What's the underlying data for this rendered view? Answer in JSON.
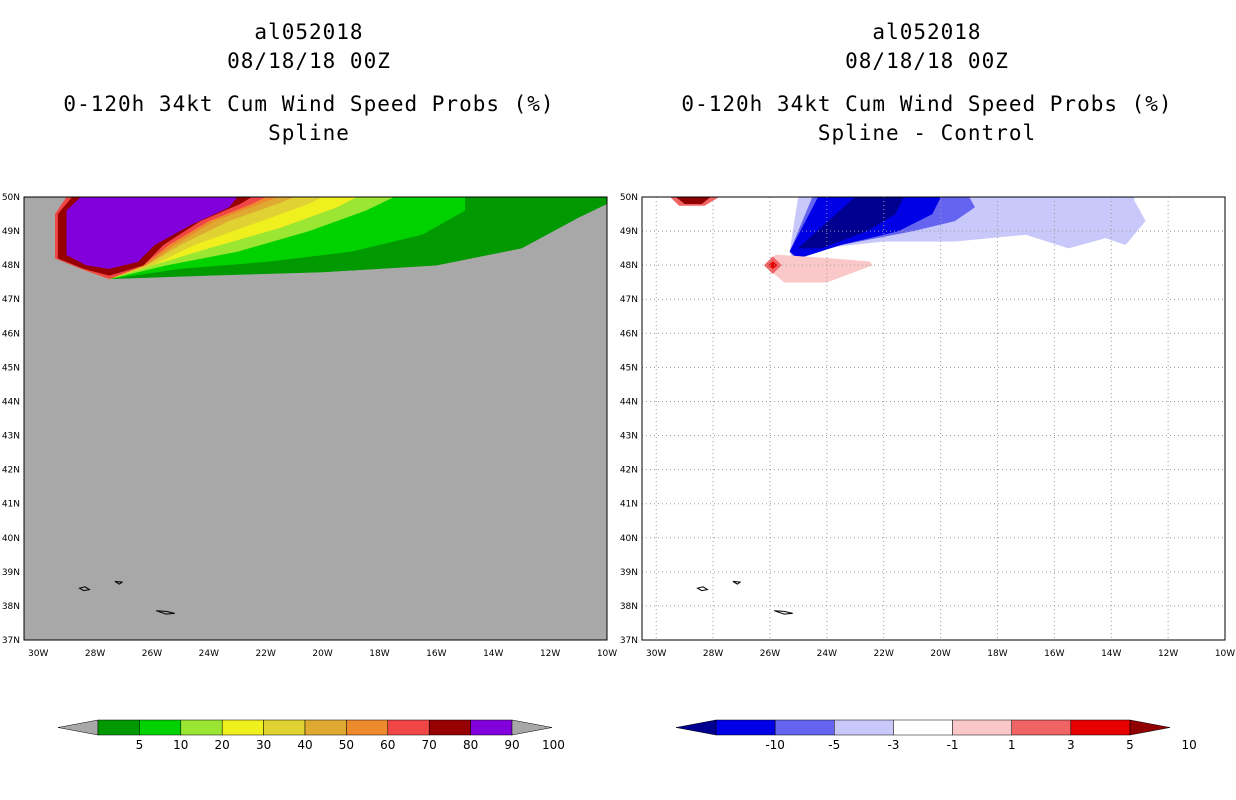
{
  "chart_data": [
    {
      "type": "heatmap",
      "panel": "left",
      "title": {
        "storm_id": "al052018",
        "datetime": "08/18/18 00Z",
        "line1": "0-120h 34kt Cum Wind Speed Probs (%)",
        "line2": "Spline"
      },
      "field": "cumulative 34kt wind speed probability (%)",
      "xlim": [
        -30.5,
        -10
      ],
      "ylim": [
        37,
        50
      ],
      "x_ticks": [
        -30,
        -28,
        -26,
        -24,
        -22,
        -20,
        -18,
        -16,
        -14,
        -12,
        -10
      ],
      "x_tick_labels": [
        "30W",
        "28W",
        "26W",
        "24W",
        "22W",
        "20W",
        "18W",
        "16W",
        "14W",
        "12W",
        "10W"
      ],
      "y_ticks": [
        37,
        38,
        39,
        40,
        41,
        42,
        43,
        44,
        45,
        46,
        47,
        48,
        49,
        50
      ],
      "y_tick_labels": [
        "37N",
        "38N",
        "39N",
        "40N",
        "41N",
        "42N",
        "43N",
        "44N",
        "45N",
        "46N",
        "47N",
        "48N",
        "49N",
        "50N"
      ],
      "background_label": "< 5",
      "background_color": "#a8a8a8",
      "gridlines": false,
      "colorbar": {
        "labels": [
          "5",
          "10",
          "20",
          "30",
          "40",
          "50",
          "60",
          "70",
          "80",
          "90",
          "100"
        ],
        "colors": [
          "#a8a8a8",
          "#009900",
          "#00d200",
          "#9ae632",
          "#f0f01e",
          "#e0d232",
          "#e0aa32",
          "#ee8a2e",
          "#f04646",
          "#960000",
          "#8200dc",
          "#a8a8a8"
        ],
        "extend": "both"
      },
      "contours": [
        {
          "level": 5,
          "color": "#009900",
          "lon": [
            -28.5,
            -27.5,
            -24,
            -20,
            -16,
            -13,
            -11,
            -10,
            -10,
            -28.5
          ],
          "lat": [
            47.9,
            47.6,
            47.7,
            47.8,
            48.0,
            48.5,
            49.4,
            49.8,
            50.0,
            50.0
          ]
        },
        {
          "level": 10,
          "color": "#00d200",
          "lon": [
            -28.5,
            -27.5,
            -25,
            -22,
            -19,
            -16.5,
            -15,
            -15,
            -28.5
          ],
          "lat": [
            47.9,
            47.6,
            47.9,
            48.1,
            48.4,
            48.9,
            49.6,
            50.0,
            50.0
          ]
        },
        {
          "level": 20,
          "color": "#9ae632",
          "lon": [
            -28.5,
            -27.5,
            -25.5,
            -23,
            -20.5,
            -18.5,
            -17.5,
            -28.5
          ],
          "lat": [
            47.9,
            47.6,
            48.0,
            48.4,
            49.0,
            49.6,
            50.0,
            50.0
          ]
        },
        {
          "level": 30,
          "color": "#f0f01e",
          "lon": [
            -28.5,
            -27.5,
            -26,
            -24,
            -21.5,
            -19.5,
            -18.8,
            -28.5
          ],
          "lat": [
            47.9,
            47.6,
            48.0,
            48.5,
            49.1,
            49.7,
            50.0,
            50.0
          ]
        },
        {
          "level": 40,
          "color": "#e0d232",
          "lon": [
            -28.5,
            -27.5,
            -26,
            -24.5,
            -22.5,
            -20.5,
            -20.0,
            -28.5
          ],
          "lat": [
            47.9,
            47.6,
            48.0,
            48.6,
            49.2,
            49.8,
            50.0,
            50.0
          ]
        },
        {
          "level": 50,
          "color": "#e0aa32",
          "lon": [
            -28.5,
            -27.5,
            -26.2,
            -25,
            -23.3,
            -21.6,
            -21.0,
            -28.5
          ],
          "lat": [
            47.9,
            47.6,
            48.0,
            48.6,
            49.3,
            49.8,
            50.0,
            50.0
          ]
        },
        {
          "level": 60,
          "color": "#ee8a2e",
          "lon": [
            -28.5,
            -27.5,
            -26.2,
            -25.2,
            -23.8,
            -22.2,
            -21.6,
            -28.5
          ],
          "lat": [
            47.9,
            47.6,
            48.0,
            48.6,
            49.3,
            49.8,
            50.0,
            50.0
          ]
        },
        {
          "level": 70,
          "color": "#f04646",
          "lon": [
            -29.4,
            -29.4,
            -28.5,
            -27.5,
            -26.3,
            -25.4,
            -24.0,
            -22.5,
            -22.0,
            -29.0
          ],
          "lat": [
            49.5,
            48.2,
            47.9,
            47.6,
            48.0,
            48.6,
            49.3,
            49.8,
            50.0,
            50.0
          ]
        },
        {
          "level": 80,
          "color": "#960000",
          "lon": [
            -29.3,
            -29.3,
            -28.4,
            -27.5,
            -26.3,
            -25.6,
            -24.3,
            -22.9,
            -22.5,
            -28.8
          ],
          "lat": [
            49.5,
            48.2,
            47.9,
            47.7,
            48.0,
            48.6,
            49.3,
            49.8,
            50.0,
            50.0
          ]
        },
        {
          "level": 90,
          "color": "#8200dc",
          "lon": [
            -29.0,
            -29.0,
            -28.3,
            -27.5,
            -26.5,
            -25.9,
            -24.6,
            -23.3,
            -23.0,
            -28.5
          ],
          "lat": [
            49.6,
            48.3,
            48.0,
            47.9,
            48.1,
            48.6,
            49.2,
            49.7,
            50.0,
            50.0
          ]
        }
      ],
      "islands": [
        {
          "lon": [
            -28.55,
            -28.35,
            -28.2,
            -28.4,
            -28.55
          ],
          "lat": [
            38.52,
            38.56,
            38.48,
            38.45,
            38.52
          ]
        },
        {
          "lon": [
            -27.3,
            -27.05,
            -27.15,
            -27.3
          ],
          "lat": [
            38.72,
            38.7,
            38.64,
            38.72
          ]
        },
        {
          "lon": [
            -25.85,
            -25.5,
            -25.2,
            -25.5,
            -25.85
          ],
          "lat": [
            37.86,
            37.84,
            37.78,
            37.76,
            37.86
          ]
        }
      ]
    },
    {
      "type": "heatmap",
      "panel": "right",
      "title": {
        "storm_id": "al052018",
        "datetime": "08/18/18 00Z",
        "line1": "0-120h 34kt Cum Wind Speed Probs (%)",
        "line2": "Spline - Control"
      },
      "field": "difference in cumulative 34kt wind speed probability (%)",
      "xlim": [
        -30.5,
        -10
      ],
      "ylim": [
        37,
        50
      ],
      "x_ticks": [
        -30,
        -28,
        -26,
        -24,
        -22,
        -20,
        -18,
        -16,
        -14,
        -12,
        -10
      ],
      "x_tick_labels": [
        "30W",
        "28W",
        "26W",
        "24W",
        "22W",
        "20W",
        "18W",
        "16W",
        "14W",
        "12W",
        "10W"
      ],
      "y_ticks": [
        37,
        38,
        39,
        40,
        41,
        42,
        43,
        44,
        45,
        46,
        47,
        48,
        49,
        50
      ],
      "y_tick_labels": [
        "37N",
        "38N",
        "39N",
        "40N",
        "41N",
        "42N",
        "43N",
        "44N",
        "45N",
        "46N",
        "47N",
        "48N",
        "49N",
        "50N"
      ],
      "background_label": "-1 to 1",
      "background_color": "#ffffff",
      "gridlines": true,
      "colorbar": {
        "labels": [
          "-10",
          "-5",
          "-3",
          "-1",
          "1",
          "3",
          "5",
          "10"
        ],
        "colors": [
          "#000090",
          "#0000e6",
          "#6464f0",
          "#c8c8fa",
          "#ffffff",
          "#fac8c8",
          "#f06464",
          "#e60000",
          "#900000"
        ],
        "extend": "both"
      },
      "contours": [
        {
          "level": -1,
          "color": "#c8c8fa",
          "lon": [
            -25.3,
            -25.2,
            -24.2,
            -22.0,
            -19.5,
            -17.0,
            -15.5,
            -14.2,
            -13.5,
            -13.0,
            -12.8,
            -13.2,
            -13.2,
            -25.0
          ],
          "lat": [
            48.4,
            48.2,
            48.5,
            48.7,
            48.7,
            48.9,
            48.5,
            48.8,
            48.6,
            49.1,
            49.3,
            49.9,
            50.0,
            50.0
          ]
        },
        {
          "level": -3,
          "color": "#6464f0",
          "lon": [
            -25.3,
            -25.1,
            -23.5,
            -21.0,
            -19.5,
            -18.8,
            -19.0,
            -24.5
          ],
          "lat": [
            48.4,
            48.2,
            48.6,
            49.0,
            49.3,
            49.7,
            50.0,
            50.0
          ]
        },
        {
          "level": -5,
          "color": "#0000e6",
          "lon": [
            -25.3,
            -25.0,
            -23.5,
            -21.5,
            -20.3,
            -20.0,
            -24.3
          ],
          "lat": [
            48.4,
            48.2,
            48.6,
            49.0,
            49.5,
            50.0,
            50.0
          ]
        },
        {
          "level": -10,
          "color": "#000090",
          "lon": [
            -25.0,
            -24.2,
            -22.6,
            -21.6,
            -21.3,
            -23.0
          ],
          "lat": [
            48.5,
            48.5,
            49.0,
            49.5,
            50.0,
            50.0
          ]
        },
        {
          "level": 1,
          "color": "#fac8c8",
          "lon": [
            -26.2,
            -25.5,
            -24.0,
            -22.4,
            -22.5,
            -24.0,
            -25.8
          ],
          "lat": [
            48.0,
            47.5,
            47.5,
            48.0,
            48.1,
            48.2,
            48.3
          ]
        },
        {
          "level": 3,
          "color": "#f06464",
          "lon": [
            -26.2,
            -25.9,
            -25.6,
            -25.9
          ],
          "lat": [
            48.0,
            47.75,
            48.0,
            48.25
          ]
        },
        {
          "level": 5,
          "color": "#e60000",
          "lon": [
            -26.05,
            -25.9,
            -25.75,
            -25.9
          ],
          "lat": [
            48.0,
            47.9,
            48.0,
            48.1
          ]
        },
        {
          "level": 3,
          "color": "#f06464",
          "lon": [
            -29.5,
            -29.2,
            -28.3,
            -27.8,
            -28.0
          ],
          "lat": [
            50.0,
            49.75,
            49.75,
            50.0,
            50.0
          ]
        },
        {
          "level": 10,
          "color": "#900000",
          "lon": [
            -29.3,
            -29.0,
            -28.4,
            -28.1
          ],
          "lat": [
            50.0,
            49.8,
            49.8,
            50.0
          ]
        }
      ],
      "islands": [
        {
          "lon": [
            -28.55,
            -28.35,
            -28.2,
            -28.4,
            -28.55
          ],
          "lat": [
            38.52,
            38.56,
            38.48,
            38.45,
            38.52
          ]
        },
        {
          "lon": [
            -27.3,
            -27.05,
            -27.15,
            -27.3
          ],
          "lat": [
            38.72,
            38.7,
            38.64,
            38.72
          ]
        },
        {
          "lon": [
            -25.85,
            -25.5,
            -25.2,
            -25.5,
            -25.85
          ],
          "lat": [
            37.86,
            37.84,
            37.78,
            37.76,
            37.86
          ]
        }
      ]
    }
  ]
}
